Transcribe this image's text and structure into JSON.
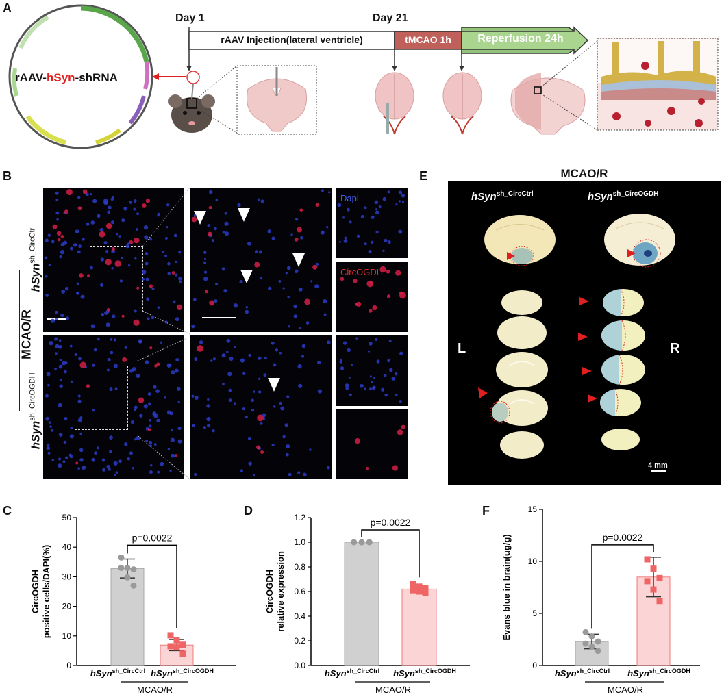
{
  "panels": {
    "a": {
      "letter": "A",
      "plasmid_label_prefix": "rAAV-",
      "plasmid_label_mid": "hSyn",
      "plasmid_label_suffix": "-shRNA",
      "day1": "Day 1",
      "day21": "Day 21",
      "injection": "rAAV Injection(lateral ventricle)",
      "tmcao": "tMCAO 1h",
      "reperfusion": "Reperfusion 24h",
      "colors": {
        "tmcao": "#c0605a",
        "reperfusion": "#93c47a",
        "highlight": "#e02020"
      }
    },
    "b": {
      "letter": "B",
      "side_label": "MCAO/R",
      "row1_label_main": "hSyn",
      "row1_label_sup": "sh_CircCtrl",
      "row2_label_main": "hSyn",
      "row2_label_sup": "sh_CircOGDH",
      "channel_dapi": "Dapi",
      "channel_circ": "CircOGDH"
    },
    "e": {
      "letter": "E",
      "title": "MCAO/R",
      "col1_main": "hSyn",
      "col1_sup": "sh_CircCtrl",
      "col2_main": "hSyn",
      "col2_sup": "sh_CircOGDH",
      "left": "L",
      "right": "R",
      "scale": "4 mm"
    }
  },
  "bar_charts": {
    "labels": {
      "group1_main": "hSyn",
      "group1_sup": "sh_CircCtrl",
      "group2_main": "hSyn",
      "group2_sup": "sh_CircOGDH",
      "group_label": "MCAO/R"
    },
    "colors": {
      "ctrl_fill": "#d0d0d0",
      "ctrl_edge": "#a8a8a8",
      "ctrl_point": "#9a9a9a",
      "kd_fill": "#fbd5d5",
      "kd_edge": "#f07a7a",
      "kd_point": "#ef6464"
    }
  },
  "chart_data": [
    {
      "type": "bar",
      "panel": "C",
      "ylabel_line1": "CircOGDH",
      "ylabel_line2": "positive cells/DAPI(%)",
      "categories": [
        "hSyn sh_CircCtrl",
        "hSyn sh_CircOGDH"
      ],
      "values": [
        32.8,
        6.9
      ],
      "errors": [
        3.2,
        1.9
      ],
      "points": [
        [
          36.5,
          33,
          32.5,
          33,
          29.8,
          27
        ],
        [
          10.2,
          8.5,
          7,
          6.5,
          6.1,
          4
        ]
      ],
      "ylim": [
        0,
        50
      ],
      "yticks": [
        0,
        10,
        20,
        30,
        40,
        50
      ],
      "annotation": "p=0.0022"
    },
    {
      "type": "bar",
      "panel": "D",
      "ylabel_line1": "CircOGDH",
      "ylabel_line2": "relative expression",
      "categories": [
        "hSyn sh_CircCtrl",
        "hSyn sh_CircOGDH"
      ],
      "values": [
        1.0,
        0.62
      ],
      "errors": [
        0,
        0.03
      ],
      "points": [
        [
          1,
          1,
          1,
          1,
          1,
          1
        ],
        [
          0.66,
          0.64,
          0.63,
          0.61,
          0.6,
          0.59
        ]
      ],
      "ylim": [
        0,
        1.2
      ],
      "yticks": [
        "0.0",
        "0.2",
        "0.4",
        "0.6",
        "0.8",
        "1.0",
        "1.2"
      ],
      "annotation": "p=0.0022"
    },
    {
      "type": "bar",
      "panel": "F",
      "ylabel_line1": "Evans blue in brain(ug/g)",
      "ylabel_line2": "",
      "categories": [
        "hSyn sh_CircCtrl",
        "hSyn sh_CircOGDH"
      ],
      "values": [
        2.3,
        8.5
      ],
      "errors": [
        0.7,
        1.9
      ],
      "points": [
        [
          3.2,
          2.8,
          2.3,
          2.1,
          1.8,
          1.4
        ],
        [
          10.2,
          9.3,
          8.4,
          8.1,
          7.3,
          6.2
        ]
      ],
      "ylim": [
        0,
        15
      ],
      "yticks": [
        0,
        5,
        10,
        15
      ],
      "annotation": "p=0.0022"
    }
  ]
}
